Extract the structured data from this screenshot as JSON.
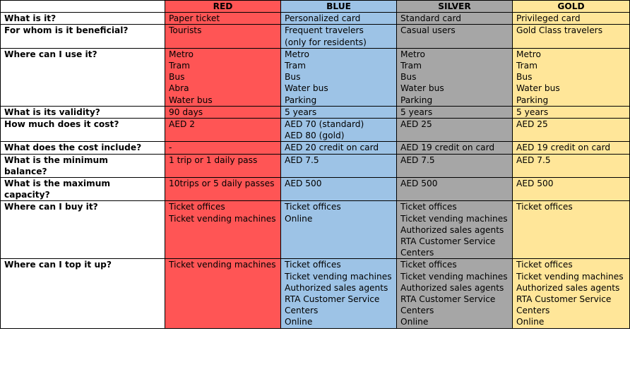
{
  "table": {
    "headers": [
      "",
      "RED",
      "BLUE",
      "SILVER",
      "GOLD"
    ],
    "rows": [
      {
        "question": "What is it?",
        "cells": [
          [
            "Paper ticket"
          ],
          [
            "Personalized card"
          ],
          [
            "Standard card"
          ],
          [
            "Privileged card"
          ]
        ]
      },
      {
        "question": "For whom is it beneficial?",
        "cells": [
          [
            "Tourists"
          ],
          [
            "Frequent travelers",
            "(only for residents)"
          ],
          [
            "Casual users"
          ],
          [
            "Gold Class travelers"
          ]
        ]
      },
      {
        "question": "Where can I use it?",
        "cells": [
          [
            "Metro",
            "Tram",
            "Bus",
            "Abra",
            "Water bus"
          ],
          [
            "Metro",
            "Tram",
            "Bus",
            "Water bus",
            "Parking"
          ],
          [
            "Metro",
            "Tram",
            "Bus",
            "Water bus",
            "Parking"
          ],
          [
            "Metro",
            "Tram",
            "Bus",
            "Water bus",
            "Parking"
          ]
        ]
      },
      {
        "question": "What is its validity?",
        "cells": [
          [
            "90 days"
          ],
          [
            "5 years"
          ],
          [
            "5 years"
          ],
          [
            "5 years"
          ]
        ]
      },
      {
        "question": "How much does it cost?",
        "cells": [
          [
            "AED 2"
          ],
          [
            "AED 70 (standard)",
            "AED 80 (gold)"
          ],
          [
            "AED 25"
          ],
          [
            "AED 25"
          ]
        ]
      },
      {
        "question": "What does the cost include?",
        "cells": [
          [
            "-"
          ],
          [
            "AED 20 credit on card"
          ],
          [
            "AED 19 credit on card"
          ],
          [
            "AED 19 credit on card"
          ]
        ]
      },
      {
        "question": "What is the minimum balance?",
        "cells": [
          [
            "1 trip or 1 daily pass"
          ],
          [
            "AED 7.5"
          ],
          [
            "AED 7.5"
          ],
          [
            "AED 7.5"
          ]
        ]
      },
      {
        "question": "What is the maximum capacity?",
        "cells": [
          [
            "10trips or 5 daily passes"
          ],
          [
            "AED 500"
          ],
          [
            "AED 500"
          ],
          [
            "AED 500"
          ]
        ]
      },
      {
        "question": "Where can I buy it?",
        "cells": [
          [
            "Ticket offices",
            "Ticket vending machines"
          ],
          [
            "Ticket offices",
            "Online"
          ],
          [
            "Ticket offices",
            "Ticket vending machines",
            "Authorized sales agents",
            "RTA Customer Service Centers"
          ],
          [
            "Ticket offices"
          ]
        ]
      },
      {
        "question": "Where can I top it up?",
        "cells": [
          [
            "Ticket vending machines"
          ],
          [
            "Ticket offices",
            "Ticket vending machines",
            "Authorized sales agents",
            "RTA Customer Service Centers",
            "Online"
          ],
          [
            "Ticket offices",
            "Ticket vending machines",
            "Authorized sales agents",
            "RTA Customer Service Centers",
            "Online"
          ],
          [
            "Ticket offices",
            "Ticket vending machines",
            "Authorized sales agents",
            "RTA Customer Service Centers",
            "Online"
          ]
        ]
      }
    ]
  }
}
